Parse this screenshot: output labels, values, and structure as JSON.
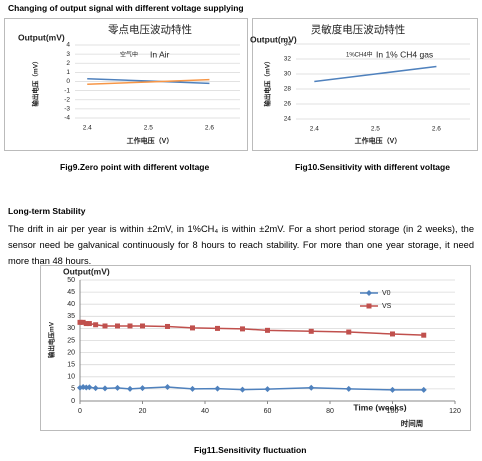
{
  "document": {
    "heading": "Changing of output signal with different voltage supplying",
    "captions": [
      "Fig9.Zero point with different voltage",
      "Fig10.Sensitivity with different voltage",
      "Fig11.Sensitivity fluctuation"
    ],
    "section_title": "Long-term Stability",
    "paragraph": "The drift in air per year is within ±2mV, in 1%CH₄ is within ±2mV. For a short period storage (in 2 weeks), the sensor need be galvanical continuously for 8 hours to reach stability. For more than one year storage, it need more than 48 hours."
  },
  "chart_data": [
    {
      "type": "line",
      "title": "零点电压波动特性",
      "unit_label": "Output(mV)",
      "ylabel": "输出电压（mV）",
      "xlabel": "工作电压（V）",
      "annotations": [
        "空气中",
        "In Air"
      ],
      "x": [
        2.4,
        2.5,
        2.6
      ],
      "series": [
        {
          "color": "#4f81bd",
          "values": [
            0.3,
            0.05,
            -0.2
          ]
        },
        {
          "color": "#f79646",
          "values": [
            -0.3,
            -0.05,
            0.2
          ]
        }
      ],
      "xlim": [
        2.38,
        2.65
      ],
      "xticks": [
        2.4,
        2.5,
        2.6
      ],
      "ylim": [
        -4,
        4
      ],
      "yticks": [
        -4,
        -3,
        -2,
        -1,
        0,
        1,
        2,
        3,
        4
      ],
      "grid": true
    },
    {
      "type": "line",
      "title": "灵敏度电压波动特性",
      "unit_label": "Output(mV)",
      "ylabel": "输出电压（mV）",
      "xlabel": "工作电压（V）",
      "annotations": [
        "1%CH4中",
        "In 1% CH4 gas"
      ],
      "x": [
        2.4,
        2.5,
        2.6
      ],
      "series": [
        {
          "color": "#4f81bd",
          "values": [
            29,
            30,
            31
          ]
        }
      ],
      "xlim": [
        2.37,
        2.655
      ],
      "xticks": [
        2.4,
        2.5,
        2.6
      ],
      "ylim": [
        24,
        34
      ],
      "yticks": [
        24,
        26,
        28,
        30,
        32,
        34
      ],
      "grid": true
    },
    {
      "type": "line",
      "unit_label": "Output(mV)",
      "ylabel": "输出电压mV",
      "xlabel": "Time (weeks)",
      "xlabel2": "时间周",
      "x": [
        0,
        1,
        2,
        3,
        5,
        8,
        12,
        16,
        20,
        28,
        36,
        44,
        52,
        60,
        74,
        86,
        100,
        110
      ],
      "series": [
        {
          "name": "V0",
          "color": "#4f81bd",
          "marker": "diamond",
          "values": [
            5.5,
            5.8,
            5.6,
            5.7,
            5.3,
            5.2,
            5.4,
            5.0,
            5.3,
            5.8,
            5.0,
            5.1,
            4.7,
            4.9,
            5.5,
            5.0,
            4.6,
            4.6
          ]
        },
        {
          "name": "VS",
          "color": "#c0504d",
          "marker": "square",
          "values": [
            32.5,
            32.5,
            32,
            32,
            31.5,
            31,
            31,
            31,
            31,
            30.8,
            30.2,
            30,
            29.8,
            29.2,
            28.8,
            28.5,
            27.7,
            27.2
          ]
        }
      ],
      "xlim": [
        0,
        120
      ],
      "xticks": [
        0,
        20,
        40,
        60,
        80,
        100,
        120
      ],
      "ylim": [
        0,
        50
      ],
      "yticks": [
        0,
        5,
        10,
        15,
        20,
        25,
        30,
        35,
        40,
        45,
        50
      ],
      "grid": true,
      "legend": "upper-right"
    }
  ]
}
